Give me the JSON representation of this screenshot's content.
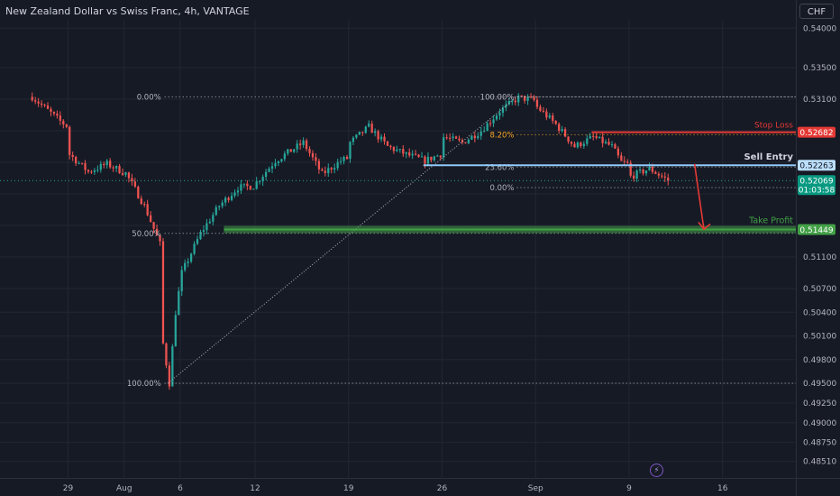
{
  "title": "New Zealand Dollar vs Swiss Franc, 4h, VANTAGE",
  "currency_button": "CHF",
  "colors": {
    "background": "#161a25",
    "grid": "#222633",
    "up": "#26a69a",
    "down": "#ef5350",
    "stop_loss": "#e53935",
    "sell_entry": "#90caf9",
    "take_profit": "#43a047",
    "fib_line": "#b2b5be",
    "fib_618": "#f5a623"
  },
  "icons": {
    "bottom_indicator": "lightning-icon"
  },
  "chart_data": {
    "type": "candlestick",
    "title": "New Zealand Dollar vs Swiss Franc, 4h, VANTAGE",
    "ylim": [
      0.4843,
      0.5425
    ],
    "y_ticks": [
      "0.54000",
      "0.53500",
      "0.53100",
      "0.52700",
      "0.52300",
      "0.51900",
      "0.51500",
      "0.51100",
      "0.50700",
      "0.50400",
      "0.50100",
      "0.49800",
      "0.49500",
      "0.49250",
      "0.49000",
      "0.48750",
      "0.48510"
    ],
    "x_ticks": [
      "29",
      "Aug",
      "6",
      "12",
      "19",
      "26",
      "Sep",
      "9",
      "16"
    ],
    "anchors": [
      [
        "Jul 25 00:00",
        0.5313
      ],
      [
        "Jul 26 12:00",
        0.5282
      ],
      [
        "Jul 29 00:00",
        0.524
      ],
      [
        "Jul 30 00:00",
        0.5218
      ],
      [
        "Jul 31 00:00",
        0.5228
      ],
      [
        "Aug 1 00:00",
        0.5216
      ],
      [
        "Aug 2 00:00",
        0.5175
      ],
      [
        "Aug 5 00:00",
        0.5
      ],
      [
        "Aug 5 08:00",
        0.495
      ],
      [
        "Aug 5 16:00",
        0.504
      ],
      [
        "Aug 6 00:00",
        0.509
      ],
      [
        "Aug 7 00:00",
        0.514
      ],
      [
        "Aug 8 00:00",
        0.5175
      ],
      [
        "Aug 9 00:00",
        0.5198
      ],
      [
        "Aug 12 00:00",
        0.5205
      ],
      [
        "Aug 13 00:00",
        0.5232
      ],
      [
        "Aug 14 12:00",
        0.5255
      ],
      [
        "Aug 15 12:00",
        0.5215
      ],
      [
        "Aug 16 12:00",
        0.5232
      ],
      [
        "Aug 19 00:00",
        0.5255
      ],
      [
        "Aug 20 00:00",
        0.5275
      ],
      [
        "Aug 21 00:00",
        0.525
      ],
      [
        "Aug 22 00:00",
        0.524
      ],
      [
        "Aug 23 00:00",
        0.5232
      ],
      [
        "Aug 26 00:00",
        0.5262
      ],
      [
        "Aug 27 00:00",
        0.5255
      ],
      [
        "Aug 28 00:00",
        0.527
      ],
      [
        "Aug 29 00:00",
        0.5295
      ],
      [
        "Aug 30 00:00",
        0.5312
      ],
      [
        "Sep 2 00:00",
        0.53
      ],
      [
        "Sep 3 00:00",
        0.5278
      ],
      [
        "Sep 4 00:00",
        0.525
      ],
      [
        "Sep 5 00:00",
        0.5262
      ],
      [
        "Sep 6 00:00",
        0.525
      ],
      [
        "Sep 6 12:00",
        0.523
      ],
      [
        "Sep 9 00:00",
        0.5212
      ],
      [
        "Sep 10 00:00",
        0.5222
      ],
      [
        "Sep 11 00:00",
        0.5207
      ]
    ],
    "last_price": 0.52069,
    "countdown": "01:03:58",
    "fibonacci": {
      "upper": [
        {
          "label": "0.00%",
          "price": 0.5313
        },
        {
          "label": "50.00%",
          "price": 0.514
        },
        {
          "label": "100.00%",
          "price": 0.495
        }
      ],
      "lower": [
        {
          "label": "100.00%",
          "price": 0.5313
        },
        {
          "label": "38.20%",
          "price": 0.5265
        },
        {
          "label": "23.60%",
          "price": 0.5224
        },
        {
          "label": "0.00%",
          "price": 0.5198
        }
      ],
      "lower_618_visible_label": "8.20%"
    },
    "levels": {
      "stop_loss": {
        "label": "Stop Loss",
        "price": 0.52682,
        "price_text": "0.52682"
      },
      "sell_entry": {
        "label": "Sell Entry",
        "price": 0.52263,
        "price_text": "0.52263"
      },
      "take_profit": {
        "label": "Take Profit",
        "price": 0.51449,
        "price_text": "0.51449"
      },
      "current": {
        "price_text": "0.52069"
      }
    },
    "trend_line": {
      "from": [
        "Aug 5 08:00",
        0.495
      ],
      "to": [
        "Aug 30 00:00",
        0.5313
      ]
    },
    "projection_arrow": {
      "from": [
        "Sep 12 12:00",
        0.5228
      ],
      "to": [
        "Sep 13 00:00",
        0.5145
      ]
    }
  }
}
